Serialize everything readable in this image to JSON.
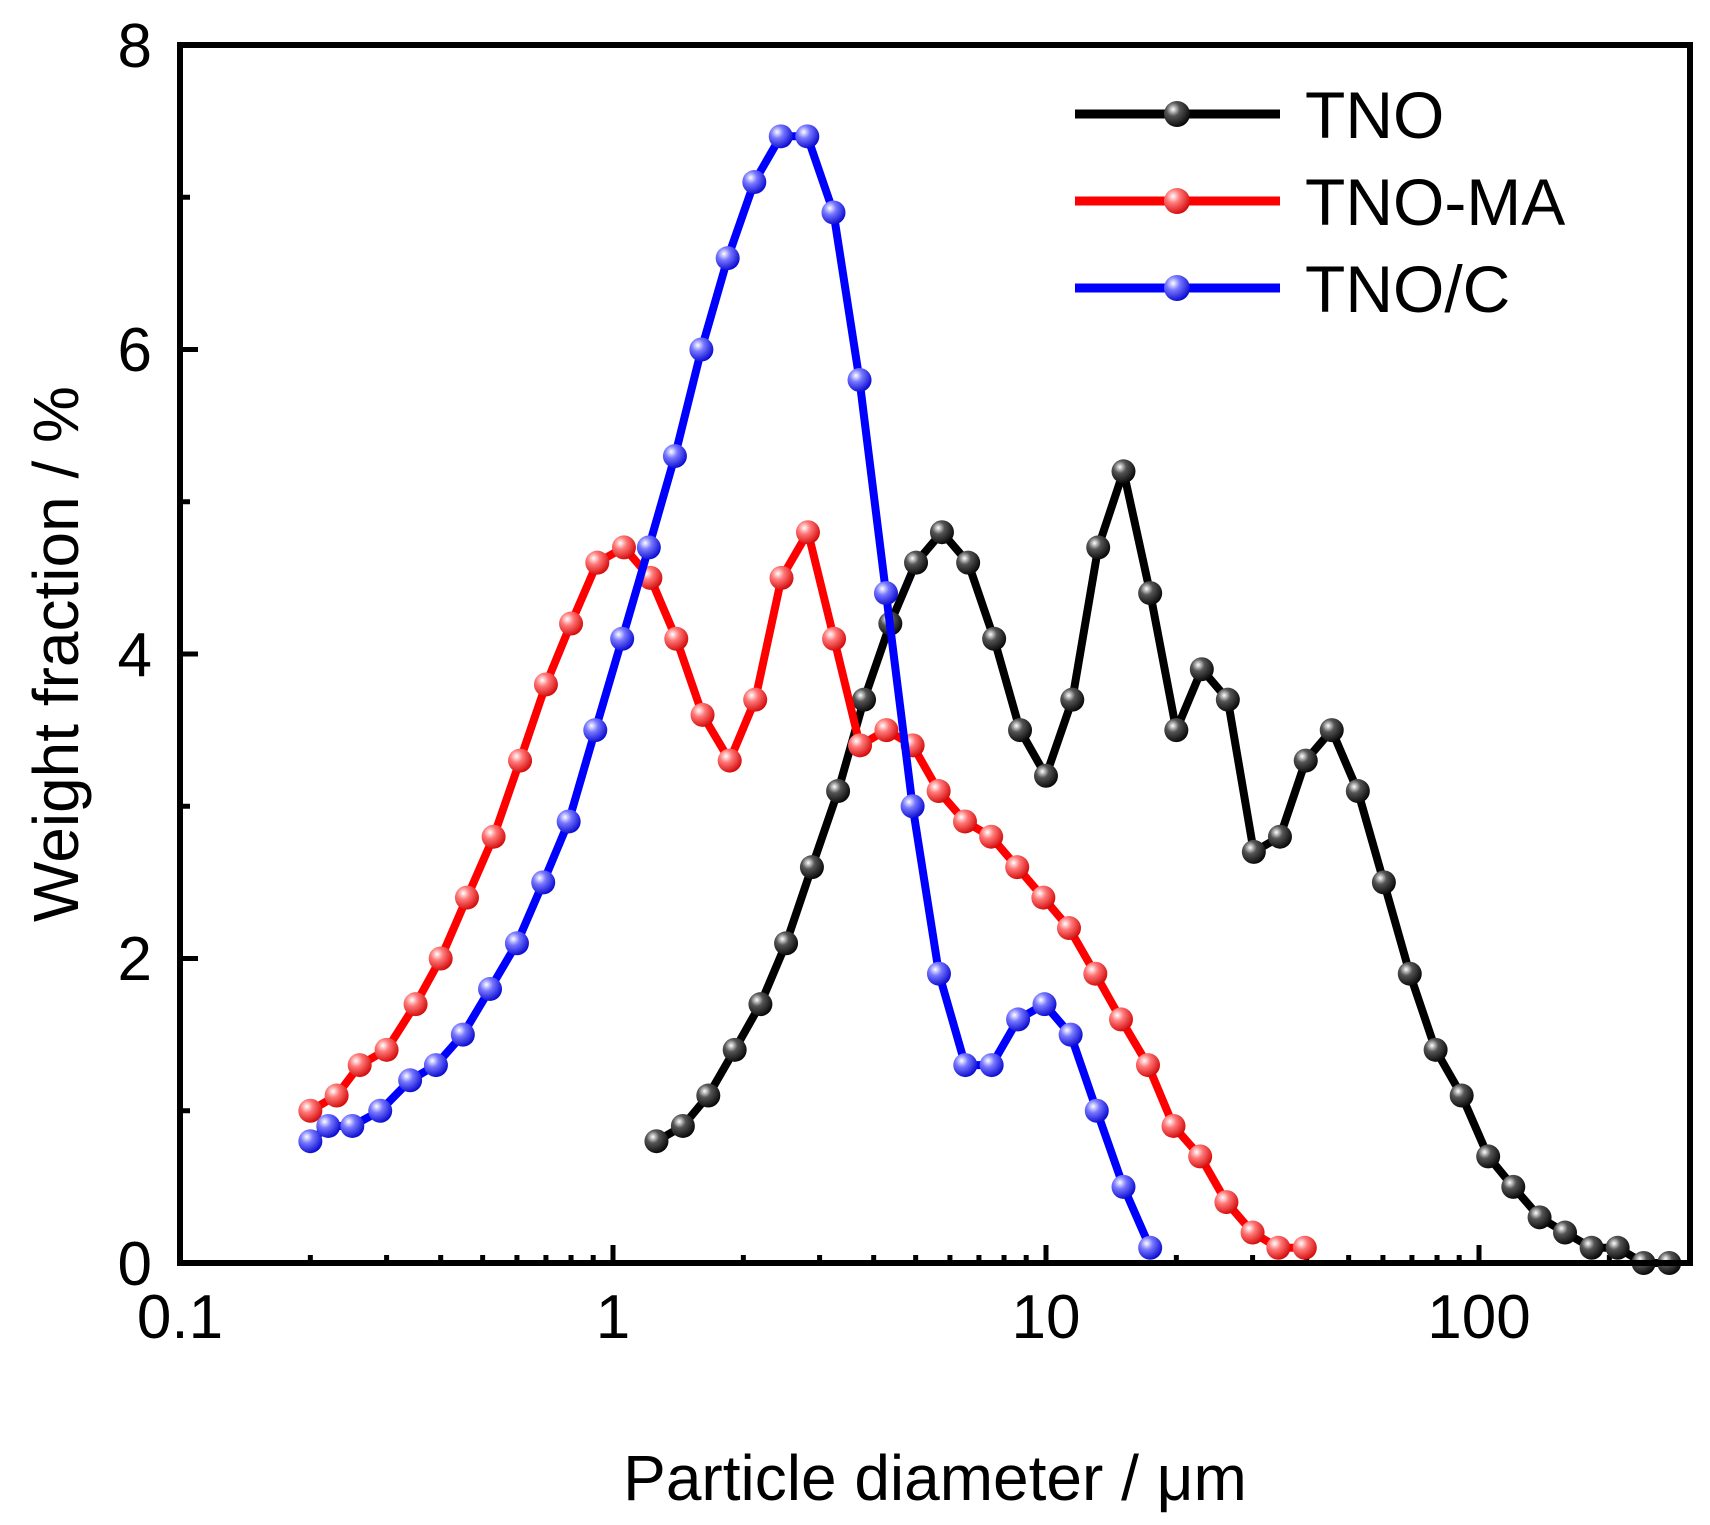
{
  "chart_data": {
    "type": "line",
    "title": "",
    "xlabel": "Particle diameter / μm",
    "ylabel": "Weight fraction / %",
    "xscale": "log",
    "xlim": [
      0.1,
      300
    ],
    "ylim": [
      0,
      8
    ],
    "xticks": [
      0.1,
      1,
      10,
      100
    ],
    "xtick_labels": [
      "0.1",
      "1",
      "10",
      "100"
    ],
    "yticks": [
      0,
      2,
      4,
      6,
      8
    ],
    "ytick_labels": [
      "0",
      "2",
      "4",
      "6",
      "8"
    ],
    "legend_position": "top-right",
    "series": [
      {
        "name": "TNO",
        "color": "#000000",
        "x": [
          1.26,
          1.45,
          1.66,
          1.91,
          2.19,
          2.51,
          2.88,
          3.31,
          3.8,
          4.37,
          5.01,
          5.75,
          6.61,
          7.59,
          8.71,
          10.0,
          11.5,
          13.2,
          15.1,
          17.4,
          20.0,
          22.9,
          26.3,
          30.2,
          34.7,
          39.8,
          45.7,
          52.5,
          60.3,
          69.2,
          79.4,
          91.2,
          105,
          120,
          138,
          158,
          182,
          209,
          240,
          275
        ],
        "y": [
          0.8,
          0.9,
          1.1,
          1.4,
          1.7,
          2.1,
          2.6,
          3.1,
          3.7,
          4.2,
          4.6,
          4.8,
          4.6,
          4.1,
          3.5,
          3.2,
          3.7,
          4.7,
          5.2,
          4.4,
          3.5,
          3.9,
          3.7,
          2.7,
          2.8,
          3.3,
          3.5,
          3.1,
          2.5,
          1.9,
          1.4,
          1.1,
          0.7,
          0.5,
          0.3,
          0.2,
          0.1,
          0.1,
          0.0,
          0.0
        ]
      },
      {
        "name": "TNO-MA",
        "color": "#ff0000",
        "x": [
          0.2,
          0.23,
          0.26,
          0.3,
          0.35,
          0.4,
          0.46,
          0.53,
          0.61,
          0.7,
          0.8,
          0.92,
          1.06,
          1.22,
          1.4,
          1.61,
          1.86,
          2.13,
          2.45,
          2.82,
          3.24,
          3.72,
          4.28,
          4.92,
          5.65,
          6.5,
          7.47,
          8.58,
          9.86,
          11.3,
          13.0,
          14.9,
          17.2,
          19.7,
          22.7,
          26.1,
          30.0,
          34.4,
          39.6
        ],
        "y": [
          1.0,
          1.1,
          1.3,
          1.4,
          1.7,
          2.0,
          2.4,
          2.8,
          3.3,
          3.8,
          4.2,
          4.6,
          4.7,
          4.5,
          4.1,
          3.6,
          3.3,
          3.7,
          4.5,
          4.8,
          4.1,
          3.4,
          3.5,
          3.4,
          3.1,
          2.9,
          2.8,
          2.6,
          2.4,
          2.2,
          1.9,
          1.6,
          1.3,
          0.9,
          0.7,
          0.4,
          0.2,
          0.1,
          0.1
        ]
      },
      {
        "name": "TNO/C",
        "color": "#0000ff",
        "x": [
          0.2,
          0.22,
          0.25,
          0.29,
          0.34,
          0.39,
          0.45,
          0.52,
          0.6,
          0.69,
          0.79,
          0.91,
          1.05,
          1.21,
          1.39,
          1.6,
          1.84,
          2.12,
          2.44,
          2.81,
          3.23,
          3.71,
          4.27,
          4.92,
          5.66,
          6.51,
          7.49,
          8.62,
          9.92,
          11.4,
          13.1,
          15.1,
          17.4
        ],
        "y": [
          0.8,
          0.9,
          0.9,
          1.0,
          1.2,
          1.3,
          1.5,
          1.8,
          2.1,
          2.5,
          2.9,
          3.5,
          4.1,
          4.7,
          5.3,
          6.0,
          6.6,
          7.1,
          7.4,
          7.4,
          6.9,
          5.8,
          4.4,
          3.0,
          1.9,
          1.3,
          1.3,
          1.6,
          1.7,
          1.5,
          1.0,
          0.5,
          0.1
        ]
      }
    ]
  }
}
